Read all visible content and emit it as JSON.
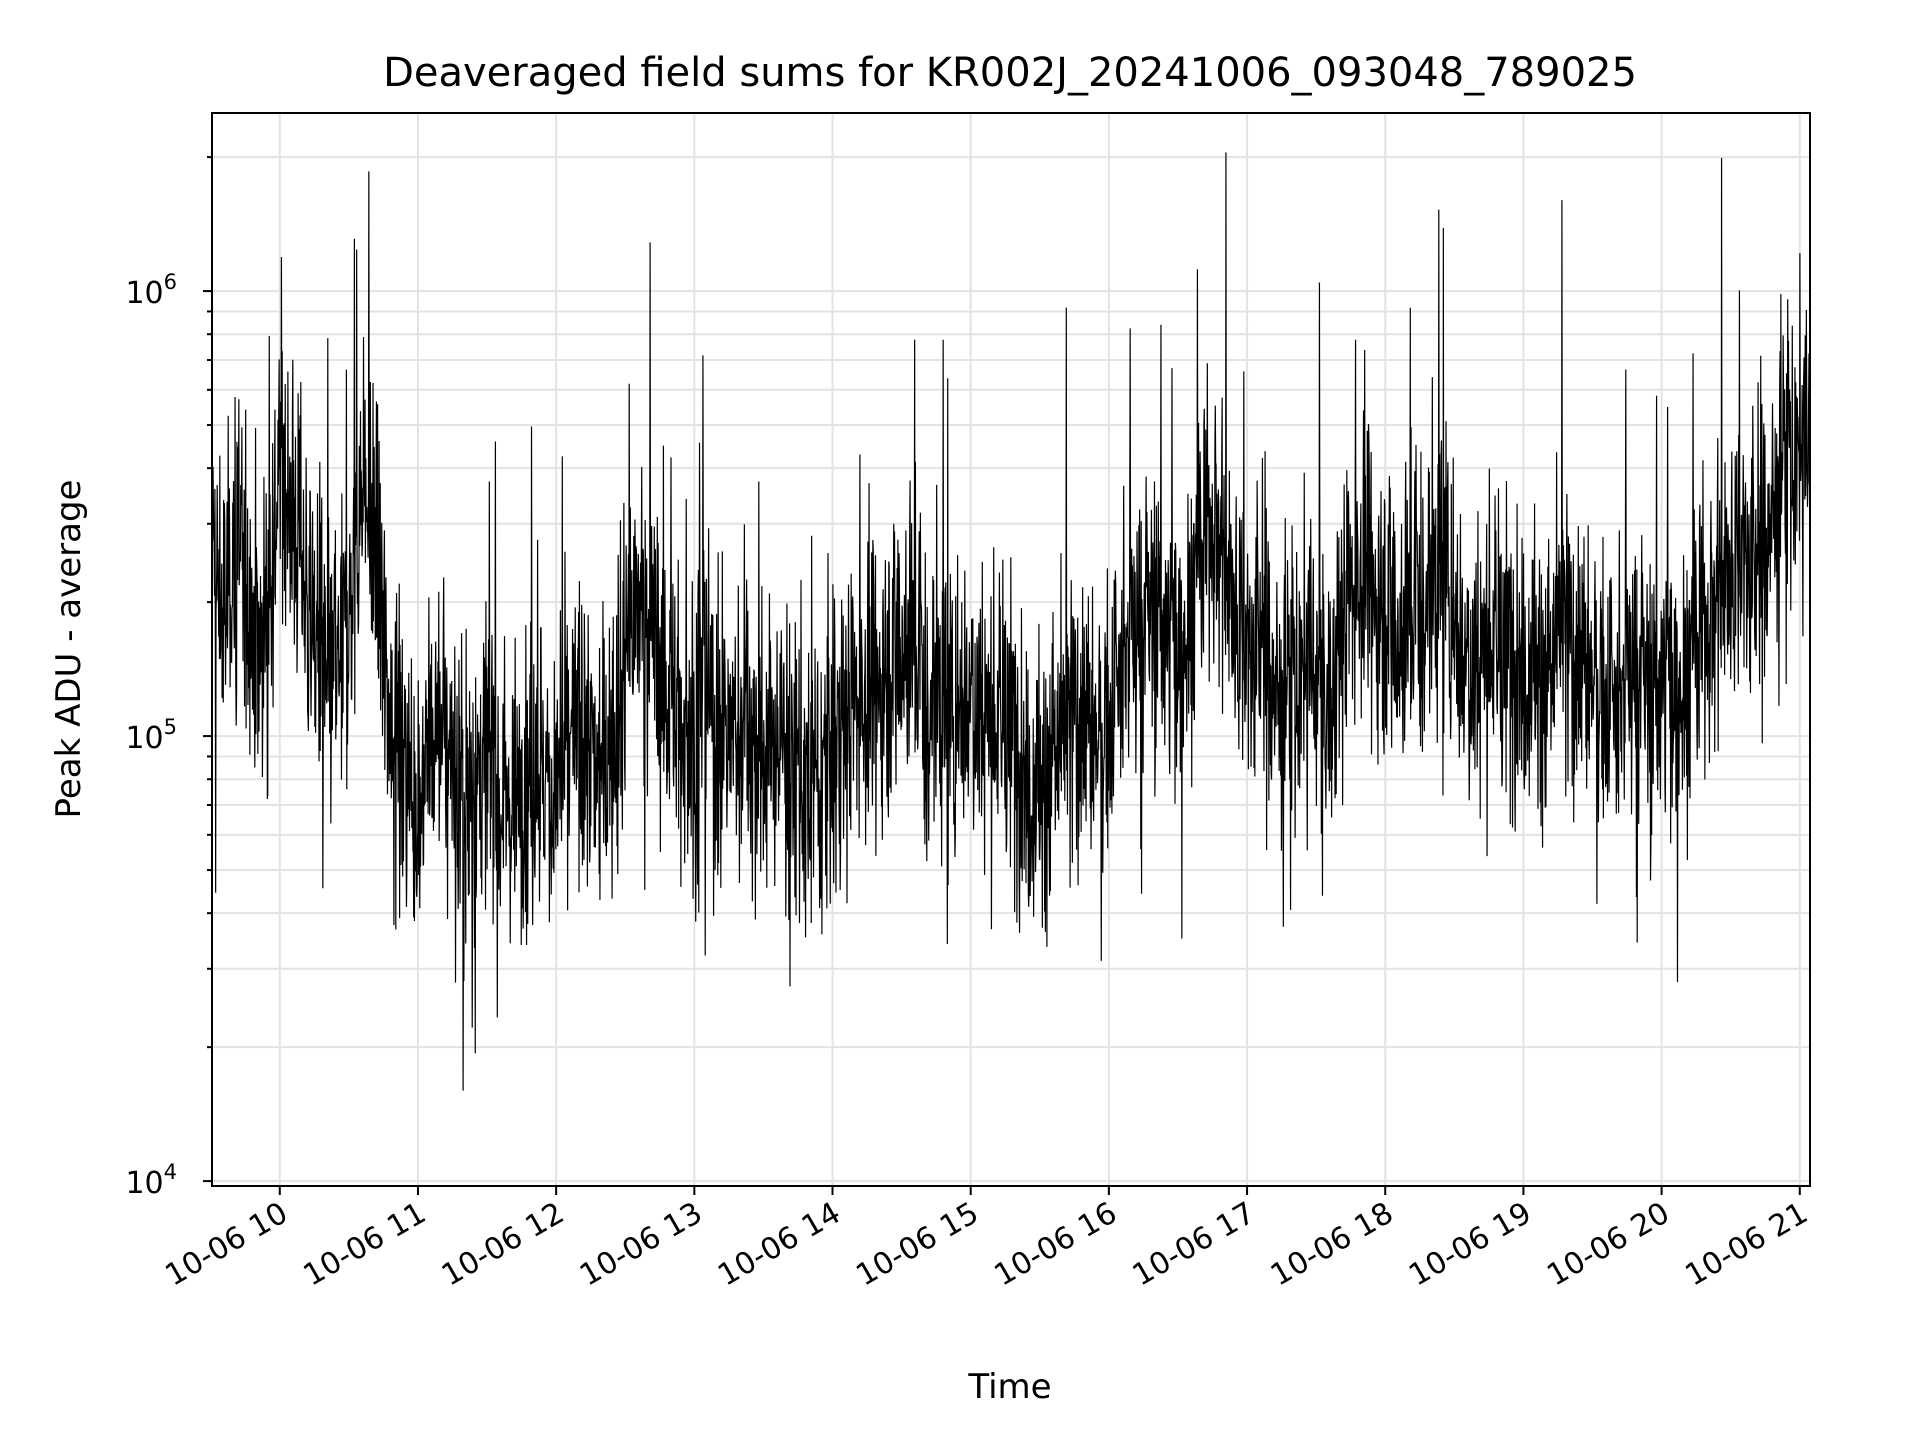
{
  "chart_data": {
    "type": "line",
    "title": "Deaveraged field sums for KR002J_20241006_093048_789025",
    "xlabel": "Time",
    "ylabel": "Peak ADU - average",
    "y_scale": "log",
    "ylim": [
      9800,
      2500000
    ],
    "xlim": [
      "2024-10-06 09:31",
      "2024-10-06 21:04"
    ],
    "grid": true,
    "line_color": "#000000",
    "x_ticks": [
      "10-06 10",
      "10-06 11",
      "10-06 12",
      "10-06 13",
      "10-06 14",
      "10-06 15",
      "10-06 16",
      "10-06 17",
      "10-06 18",
      "10-06 19",
      "10-06 20",
      "10-06 21"
    ],
    "y_ticks": [
      {
        "value": 10000,
        "base": "10",
        "exp": "4"
      },
      {
        "value": 100000,
        "base": "10",
        "exp": "5"
      },
      {
        "value": 1000000,
        "base": "10",
        "exp": "6"
      }
    ],
    "series": [
      {
        "note": "dense noisy signal; representative values sampled along time (hour of day 2024-10-06)",
        "x": [
          "09:31",
          "09:36",
          "09:41",
          "09:46",
          "09:51",
          "09:56",
          "10:01",
          "10:06",
          "10:11",
          "10:16",
          "10:21",
          "10:26",
          "10:31",
          "10:36",
          "10:41",
          "10:46",
          "10:51",
          "10:56",
          "11:01",
          "11:06",
          "11:11",
          "11:16",
          "11:21",
          "11:26",
          "11:31",
          "11:36",
          "11:41",
          "11:46",
          "11:51",
          "11:56",
          "12:01",
          "12:06",
          "12:11",
          "12:16",
          "12:21",
          "12:26",
          "12:31",
          "12:36",
          "12:41",
          "12:46",
          "12:51",
          "12:56",
          "13:01",
          "13:06",
          "13:11",
          "13:16",
          "13:21",
          "13:26",
          "13:31",
          "13:36",
          "13:41",
          "13:46",
          "13:51",
          "13:56",
          "14:01",
          "14:06",
          "14:11",
          "14:16",
          "14:21",
          "14:26",
          "14:31",
          "14:36",
          "14:41",
          "14:46",
          "14:51",
          "14:56",
          "15:01",
          "15:06",
          "15:11",
          "15:16",
          "15:21",
          "15:26",
          "15:31",
          "15:36",
          "15:41",
          "15:46",
          "15:51",
          "15:56",
          "16:01",
          "16:06",
          "16:11",
          "16:16",
          "16:21",
          "16:26",
          "16:31",
          "16:36",
          "16:41",
          "16:46",
          "16:51",
          "16:56",
          "17:01",
          "17:06",
          "17:11",
          "17:16",
          "17:21",
          "17:26",
          "17:31",
          "17:36",
          "17:41",
          "17:46",
          "17:51",
          "17:56",
          "18:01",
          "18:06",
          "18:11",
          "18:16",
          "18:21",
          "18:26",
          "18:31",
          "18:36",
          "18:41",
          "18:46",
          "18:51",
          "18:56",
          "19:01",
          "19:06",
          "19:11",
          "19:16",
          "19:21",
          "19:26",
          "19:31",
          "19:36",
          "19:41",
          "19:46",
          "19:51",
          "19:56",
          "20:01",
          "20:06",
          "20:11",
          "20:16",
          "20:21",
          "20:26",
          "20:31",
          "20:36",
          "20:41",
          "20:46",
          "20:51",
          "20:56",
          "21:01",
          "21:04"
        ],
        "y": [
          240000,
          180000,
          300000,
          220000,
          150000,
          260000,
          420000,
          300000,
          230000,
          170000,
          120000,
          150000,
          200000,
          350000,
          260000,
          140000,
          90000,
          80000,
          75000,
          90000,
          110000,
          85000,
          70000,
          80000,
          95000,
          75000,
          70000,
          85000,
          90000,
          75000,
          80000,
          95000,
          100000,
          85000,
          90000,
          110000,
          160000,
          200000,
          180000,
          140000,
          120000,
          100000,
          110000,
          130000,
          90000,
          100000,
          110000,
          95000,
          85000,
          100000,
          90000,
          80000,
          70000,
          85000,
          100000,
          110000,
          130000,
          120000,
          140000,
          150000,
          170000,
          160000,
          130000,
          120000,
          110000,
          125000,
          130000,
          120000,
          110000,
          100000,
          95000,
          80000,
          75000,
          90000,
          100000,
          115000,
          110000,
          100000,
          110000,
          140000,
          160000,
          200000,
          190000,
          170000,
          160000,
          220000,
          280000,
          320000,
          240000,
          190000,
          150000,
          160000,
          140000,
          120000,
          130000,
          150000,
          130000,
          110000,
          180000,
          230000,
          240000,
          210000,
          200000,
          170000,
          190000,
          230000,
          210000,
          250000,
          180000,
          150000,
          160000,
          170000,
          140000,
          160000,
          150000,
          140000,
          130000,
          180000,
          160000,
          150000,
          140000,
          120000,
          110000,
          130000,
          150000,
          120000,
          140000,
          130000,
          150000,
          170000,
          190000,
          230000,
          250000,
          260000,
          220000,
          300000,
          380000,
          420000,
          460000,
          400000
        ]
      }
    ]
  }
}
